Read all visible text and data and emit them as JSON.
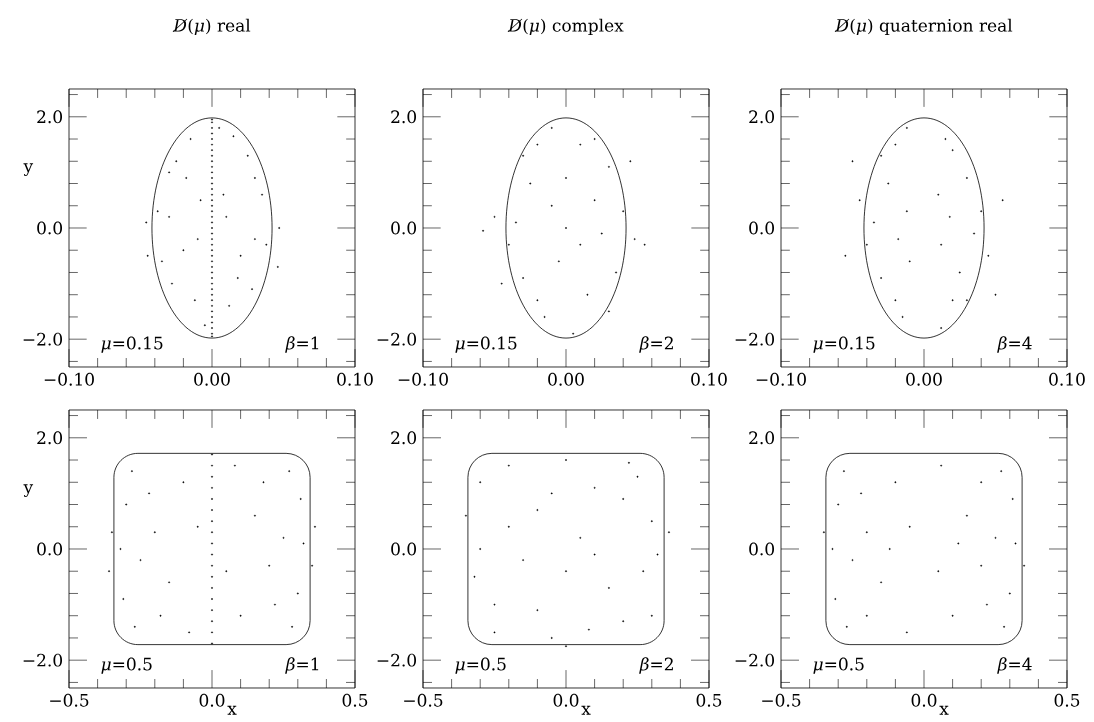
{
  "chart_data": [
    {
      "type": "scatter",
      "title": "*D̸*(*μ*) real",
      "ylabel": "y",
      "annotations": [
        "*μ*=0.15",
        "*β*=1"
      ],
      "xlim": [
        -0.1,
        0.1
      ],
      "ylim": [
        -2.5,
        2.5
      ],
      "xticks": [
        {
          "value": -0.1,
          "label": "−0.10"
        },
        {
          "value": -0.08,
          "label": null
        },
        {
          "value": -0.06,
          "label": null
        },
        {
          "value": -0.04,
          "label": null
        },
        {
          "value": -0.02,
          "label": null
        },
        {
          "value": 0,
          "label": "0.00"
        },
        {
          "value": 0.02,
          "label": null
        },
        {
          "value": 0.04,
          "label": null
        },
        {
          "value": 0.06,
          "label": null
        },
        {
          "value": 0.08,
          "label": null
        },
        {
          "value": 0.1,
          "label": "0.10"
        }
      ],
      "yticks": [
        {
          "value": -2.4,
          "label": null
        },
        {
          "value": -2,
          "label": "−2.0"
        },
        {
          "value": -1.6,
          "label": null
        },
        {
          "value": -1.2,
          "label": null
        },
        {
          "value": -0.8,
          "label": null
        },
        {
          "value": -0.4,
          "label": null
        },
        {
          "value": 0,
          "label": "0.0"
        },
        {
          "value": 0.4,
          "label": null
        },
        {
          "value": 0.8,
          "label": null
        },
        {
          "value": 1.2,
          "label": null
        },
        {
          "value": 1.6,
          "label": null
        },
        {
          "value": 2,
          "label": "2.0"
        },
        {
          "value": 2.4,
          "label": null
        }
      ],
      "series": [
        {
          "type": "scatter",
          "color": "#000000",
          "x": [
            -0.03,
            -0.025,
            -0.015,
            -0.008,
            -0.02,
            -0.035,
            -0.012,
            -0.028,
            -0.005,
            -0.038,
            -0.018,
            -0.01,
            -0.046,
            -0.045,
            -0.03,
            0.03,
            0.025,
            0.015,
            0.008,
            0.02,
            0.035,
            0.012,
            0.028,
            0.005,
            0.038,
            0.018,
            0.01,
            0.047,
            0.046,
            0.03
          ],
          "values": [
            0.2,
            1.2,
            1.6,
            0.5,
            -0.4,
            -0.6,
            -1.3,
            -1.0,
            -1.75,
            0.3,
            0.9,
            -0.2,
            0.1,
            -0.5,
            1.0,
            -0.2,
            1.3,
            1.65,
            0.6,
            -0.5,
            0.6,
            -1.4,
            -1.1,
            1.8,
            -0.3,
            -0.9,
            0.2,
            0.0,
            -0.7,
            0.9
          ]
        },
        {
          "color": "#000000",
          "x": [
            0,
            0,
            0,
            0,
            0,
            0,
            0,
            0,
            0,
            0,
            0,
            0,
            0,
            0,
            0,
            0,
            0,
            0,
            0,
            0,
            0,
            0,
            0,
            0,
            0,
            0,
            0,
            0,
            0,
            0,
            0,
            0,
            0,
            0,
            0,
            0,
            0,
            0,
            0,
            0,
            0
          ],
          "values": [
            -1.95,
            -1.9,
            -1.8,
            -1.7,
            -1.6,
            -1.5,
            -1.4,
            -1.3,
            -1.2,
            -1.1,
            -1.0,
            -0.9,
            -0.8,
            -0.7,
            -0.6,
            -0.5,
            -0.4,
            -0.3,
            -0.2,
            -0.1,
            0.0,
            0.1,
            0.2,
            0.3,
            0.4,
            0.5,
            0.6,
            0.7,
            0.8,
            0.9,
            1.0,
            1.1,
            1.2,
            1.3,
            1.4,
            1.5,
            1.6,
            1.7,
            1.8,
            1.9,
            1.95
          ]
        }
      ]
    },
    {
      "type": "scatter",
      "title": "*D̸*(*μ*) complex",
      "annotations": [
        "*μ*=0.15",
        "*β*=2"
      ],
      "xlim": [
        -0.1,
        0.1
      ],
      "ylim": [
        -2.5,
        2.5
      ],
      "xticks": [
        {
          "value": -0.1,
          "label": "−0.10"
        },
        {
          "value": -0.08,
          "label": null
        },
        {
          "value": -0.06,
          "label": null
        },
        {
          "value": -0.04,
          "label": null
        },
        {
          "value": -0.02,
          "label": null
        },
        {
          "value": 0,
          "label": "0.00"
        },
        {
          "value": 0.02,
          "label": null
        },
        {
          "value": 0.04,
          "label": null
        },
        {
          "value": 0.06,
          "label": null
        },
        {
          "value": 0.08,
          "label": null
        },
        {
          "value": 0.1,
          "label": "0.10"
        }
      ],
      "yticks": [
        {
          "value": -2.4,
          "label": null
        },
        {
          "value": -2,
          "label": "−2.0"
        },
        {
          "value": -1.6,
          "label": null
        },
        {
          "value": -1.2,
          "label": null
        },
        {
          "value": -0.8,
          "label": null
        },
        {
          "value": -0.4,
          "label": null
        },
        {
          "value": 0,
          "label": "0.0"
        },
        {
          "value": 0.4,
          "label": null
        },
        {
          "value": 0.8,
          "label": null
        },
        {
          "value": 1.2,
          "label": null
        },
        {
          "value": 1.6,
          "label": null
        },
        {
          "value": 2,
          "label": "2.0"
        },
        {
          "value": 2.4,
          "label": null
        }
      ],
      "series": [
        {
          "type": "scatter",
          "color": "#000000",
          "x": [
            -0.035,
            -0.02,
            -0.01,
            0.0,
            0.01,
            0.02,
            0.03,
            0.035,
            -0.03,
            -0.015,
            0.005,
            0.015,
            -0.025,
            0.025,
            -0.005,
            0.04,
            -0.04,
            0.01,
            -0.02,
            0.02,
            -0.05,
            -0.058,
            0.048,
            0.055,
            0.045,
            -0.045,
            0.0,
            -0.01,
            0.03,
            -0.03
          ],
          "values": [
            0.1,
            1.5,
            1.8,
            0.9,
            -0.3,
            0.5,
            1.1,
            -0.8,
            -0.9,
            -1.6,
            -1.9,
            -1.2,
            0.8,
            -0.1,
            -0.6,
            0.3,
            -0.3,
            1.5,
            -1.3,
            1.6,
            0.2,
            -0.05,
            -0.2,
            -0.3,
            1.2,
            -1.0,
            0.0,
            0.4,
            -1.5,
            1.3
          ]
        }
      ]
    },
    {
      "type": "scatter",
      "title": "*D̸*(*μ*) quaternion real",
      "annotations": [
        "*μ*=0.15",
        "*β*=4"
      ],
      "xlim": [
        -0.1,
        0.1
      ],
      "ylim": [
        -2.5,
        2.5
      ],
      "xticks": [
        {
          "value": -0.1,
          "label": "−0.10"
        },
        {
          "value": -0.08,
          "label": null
        },
        {
          "value": -0.06,
          "label": null
        },
        {
          "value": -0.04,
          "label": null
        },
        {
          "value": -0.02,
          "label": null
        },
        {
          "value": 0,
          "label": "0.00"
        },
        {
          "value": 0.02,
          "label": null
        },
        {
          "value": 0.04,
          "label": null
        },
        {
          "value": 0.06,
          "label": null
        },
        {
          "value": 0.08,
          "label": null
        },
        {
          "value": 0.1,
          "label": "0.10"
        }
      ],
      "yticks": [
        {
          "value": -2.4,
          "label": null
        },
        {
          "value": -2,
          "label": "−2.0"
        },
        {
          "value": -1.6,
          "label": null
        },
        {
          "value": -1.2,
          "label": null
        },
        {
          "value": -0.8,
          "label": null
        },
        {
          "value": -0.4,
          "label": null
        },
        {
          "value": 0,
          "label": "0.0"
        },
        {
          "value": 0.4,
          "label": null
        },
        {
          "value": 0.8,
          "label": null
        },
        {
          "value": 1.2,
          "label": null
        },
        {
          "value": 1.6,
          "label": null
        },
        {
          "value": 2,
          "label": "2.0"
        },
        {
          "value": 2.4,
          "label": null
        }
      ],
      "series": [
        {
          "type": "scatter",
          "color": "#000000",
          "x": [
            -0.035,
            -0.02,
            -0.012,
            -0.03,
            -0.015,
            -0.025,
            -0.01,
            -0.04,
            -0.02,
            -0.045,
            -0.055,
            -0.05,
            -0.012,
            -0.03,
            -0.018,
            0.035,
            0.02,
            0.012,
            0.03,
            0.015,
            0.025,
            0.01,
            0.04,
            0.02,
            0.045,
            0.055,
            0.05,
            0.012,
            0.03,
            0.018
          ],
          "values": [
            0.1,
            1.5,
            1.8,
            -0.9,
            -1.6,
            0.8,
            -0.6,
            -0.3,
            -1.3,
            0.5,
            -0.5,
            1.2,
            0.3,
            1.3,
            -0.2,
            -0.1,
            1.4,
            -1.8,
            0.9,
            1.6,
            -0.8,
            0.6,
            0.3,
            -1.3,
            -0.5,
            0.5,
            -1.2,
            -0.3,
            -1.3,
            0.2
          ]
        }
      ]
    },
    {
      "type": "scatter",
      "xlabel": "x",
      "ylabel": "y",
      "annotations": [
        "*μ*=0.5",
        "*β*=1"
      ],
      "xlim": [
        -0.5,
        0.5
      ],
      "ylim": [
        -2.5,
        2.5
      ],
      "xticks": [
        {
          "value": -0.5,
          "label": "−0.5"
        },
        {
          "value": -0.4,
          "label": null
        },
        {
          "value": -0.3,
          "label": null
        },
        {
          "value": -0.2,
          "label": null
        },
        {
          "value": -0.1,
          "label": null
        },
        {
          "value": 0,
          "label": "0.0"
        },
        {
          "value": 0.1,
          "label": null
        },
        {
          "value": 0.2,
          "label": null
        },
        {
          "value": 0.3,
          "label": null
        },
        {
          "value": 0.4,
          "label": null
        },
        {
          "value": 0.5,
          "label": "0.5"
        }
      ],
      "yticks": [
        {
          "value": -2.4,
          "label": null
        },
        {
          "value": -2,
          "label": "−2.0"
        },
        {
          "value": -1.6,
          "label": null
        },
        {
          "value": -1.2,
          "label": null
        },
        {
          "value": -0.8,
          "label": null
        },
        {
          "value": -0.4,
          "label": null
        },
        {
          "value": 0,
          "label": "0.0"
        },
        {
          "value": 0.4,
          "label": null
        },
        {
          "value": 0.8,
          "label": null
        },
        {
          "value": 1.2,
          "label": null
        },
        {
          "value": 1.6,
          "label": null
        },
        {
          "value": 2,
          "label": "2.0"
        },
        {
          "value": 2.4,
          "label": null
        }
      ],
      "series": [
        {
          "type": "scatter",
          "color": "#000000",
          "x": [
            -0.32,
            -0.3,
            -0.31,
            -0.28,
            -0.27,
            -0.2,
            -0.15,
            -0.1,
            -0.08,
            -0.22,
            -0.25,
            -0.05,
            -0.35,
            -0.36,
            -0.18,
            0.32,
            0.3,
            0.31,
            0.28,
            0.27,
            0.2,
            0.15,
            0.1,
            0.08,
            0.22,
            0.25,
            0.05,
            0.35,
            0.36,
            0.18
          ],
          "values": [
            0.0,
            0.8,
            -0.9,
            1.4,
            -1.4,
            0.3,
            -0.6,
            1.2,
            -1.5,
            1.0,
            -0.2,
            0.4,
            0.3,
            -0.4,
            -1.2,
            0.1,
            -0.8,
            0.9,
            -1.4,
            1.4,
            -0.3,
            0.6,
            -1.2,
            1.5,
            -1.0,
            0.2,
            -0.4,
            -0.3,
            0.4,
            1.2
          ]
        },
        {
          "type": "scatter",
          "color": "#000000",
          "x": [
            0,
            0,
            0,
            0,
            0,
            0,
            0,
            0,
            0,
            0,
            0,
            0,
            0,
            0,
            0,
            0,
            0,
            0
          ],
          "values": [
            -1.7,
            -1.5,
            -1.3,
            -1.1,
            -0.9,
            -0.7,
            -0.5,
            -0.3,
            -0.1,
            0.1,
            0.3,
            0.5,
            0.7,
            0.9,
            1.1,
            1.3,
            1.5,
            1.7
          ]
        }
      ]
    },
    {
      "type": "scatter",
      "xlabel": "x",
      "annotations": [
        "*μ*=0.5",
        "*β*=2"
      ],
      "xlim": [
        -0.5,
        0.5
      ],
      "ylim": [
        -2.5,
        2.5
      ],
      "xticks": [
        {
          "value": -0.5,
          "label": "−0.5"
        },
        {
          "value": -0.4,
          "label": null
        },
        {
          "value": -0.3,
          "label": null
        },
        {
          "value": -0.2,
          "label": null
        },
        {
          "value": -0.1,
          "label": null
        },
        {
          "value": 0,
          "label": "0.0"
        },
        {
          "value": 0.1,
          "label": null
        },
        {
          "value": 0.2,
          "label": null
        },
        {
          "value": 0.3,
          "label": null
        },
        {
          "value": 0.4,
          "label": null
        },
        {
          "value": 0.5,
          "label": "0.5"
        }
      ],
      "yticks": [
        {
          "value": -2.4,
          "label": null
        },
        {
          "value": -2,
          "label": "−2.0"
        },
        {
          "value": -1.6,
          "label": null
        },
        {
          "value": -1.2,
          "label": null
        },
        {
          "value": -0.8,
          "label": null
        },
        {
          "value": -0.4,
          "label": null
        },
        {
          "value": 0,
          "label": "0.0"
        },
        {
          "value": 0.4,
          "label": null
        },
        {
          "value": 0.8,
          "label": null
        },
        {
          "value": 1.2,
          "label": null
        },
        {
          "value": 1.6,
          "label": null
        },
        {
          "value": 2,
          "label": "2.0"
        },
        {
          "value": 2.4,
          "label": null
        }
      ],
      "series": [
        {
          "type": "scatter",
          "color": "#000000",
          "x": [
            -0.3,
            -0.2,
            -0.1,
            0.0,
            0.1,
            0.2,
            0.3,
            -0.25,
            -0.15,
            -0.05,
            0.05,
            0.15,
            0.25,
            -0.3,
            0.3,
            -0.32,
            0.32,
            0.0,
            -0.2,
            0.2,
            -0.1,
            0.1,
            -0.35,
            0.36,
            0.0,
            -0.25,
            0.22,
            -0.05,
            0.08,
            0.27
          ],
          "values": [
            0.0,
            1.5,
            0.7,
            -0.4,
            1.1,
            -1.3,
            0.5,
            -1.0,
            -0.2,
            -1.6,
            0.2,
            -0.7,
            1.3,
            1.2,
            -1.2,
            -0.5,
            -0.1,
            1.6,
            0.4,
            0.9,
            -1.1,
            -0.1,
            0.6,
            0.3,
            -1.75,
            -1.5,
            1.55,
            1.0,
            -1.45,
            -0.4
          ]
        }
      ]
    },
    {
      "type": "scatter",
      "xlabel": "x",
      "annotations": [
        "*μ*=0.5",
        "*β*=4"
      ],
      "xlim": [
        -0.5,
        0.5
      ],
      "ylim": [
        -2.5,
        2.5
      ],
      "xticks": [
        {
          "value": -0.5,
          "label": "−0.5"
        },
        {
          "value": -0.4,
          "label": null
        },
        {
          "value": -0.3,
          "label": null
        },
        {
          "value": -0.2,
          "label": null
        },
        {
          "value": -0.1,
          "label": null
        },
        {
          "value": 0,
          "label": "0.0"
        },
        {
          "value": 0.1,
          "label": null
        },
        {
          "value": 0.2,
          "label": null
        },
        {
          "value": 0.3,
          "label": null
        },
        {
          "value": 0.4,
          "label": null
        },
        {
          "value": 0.5,
          "label": "0.5"
        }
      ],
      "yticks": [
        {
          "value": -2.4,
          "label": null
        },
        {
          "value": -2,
          "label": "−2.0"
        },
        {
          "value": -1.6,
          "label": null
        },
        {
          "value": -1.2,
          "label": null
        },
        {
          "value": -0.8,
          "label": null
        },
        {
          "value": -0.4,
          "label": null
        },
        {
          "value": 0,
          "label": "0.0"
        },
        {
          "value": 0.4,
          "label": null
        },
        {
          "value": 0.8,
          "label": null
        },
        {
          "value": 1.2,
          "label": null
        },
        {
          "value": 1.6,
          "label": null
        },
        {
          "value": 2,
          "label": "2.0"
        },
        {
          "value": 2.4,
          "label": null
        }
      ],
      "series": [
        {
          "type": "scatter",
          "color": "#000000",
          "x": [
            -0.32,
            -0.3,
            -0.31,
            -0.28,
            -0.27,
            -0.2,
            -0.15,
            -0.1,
            -0.06,
            -0.22,
            -0.25,
            -0.05,
            -0.35,
            -0.2,
            -0.12,
            0.32,
            0.3,
            0.31,
            0.28,
            0.27,
            0.2,
            0.15,
            0.1,
            0.06,
            0.22,
            0.25,
            0.05,
            0.35,
            0.2,
            0.12
          ],
          "values": [
            0.0,
            0.8,
            -0.9,
            1.4,
            -1.4,
            0.3,
            -0.6,
            1.2,
            -1.5,
            1.0,
            -0.2,
            0.4,
            0.3,
            -1.2,
            0.0,
            0.1,
            -0.8,
            0.9,
            -1.4,
            1.4,
            -0.3,
            0.6,
            -1.2,
            1.5,
            -1.0,
            0.2,
            -0.4,
            -0.3,
            1.2,
            0.1
          ]
        }
      ]
    }
  ]
}
